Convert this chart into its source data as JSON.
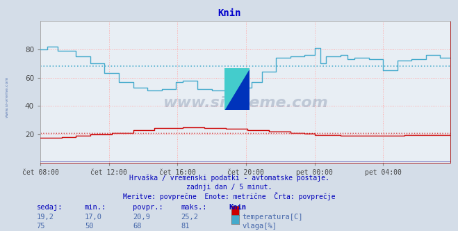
{
  "title": "Knin",
  "title_color": "#0000cc",
  "bg_color": "#d4dde8",
  "plot_bg_color": "#e8eef4",
  "grid_color": "#ffaaaa",
  "x_tick_labels": [
    "čet 08:00",
    "čet 12:00",
    "čet 16:00",
    "čet 20:00",
    "pet 00:00",
    "pet 04:00"
  ],
  "x_tick_positions": [
    0,
    48,
    96,
    144,
    192,
    240
  ],
  "total_points": 288,
  "ylim": [
    0,
    100
  ],
  "y_ticks": [
    20,
    40,
    60,
    80
  ],
  "temp_avg": 20.9,
  "temp_min": 17.0,
  "temp_max": 25.2,
  "temp_now": 19.2,
  "hum_avg": 68,
  "hum_min": 50,
  "hum_max": 81,
  "hum_now": 75,
  "temp_color": "#cc0000",
  "hum_color": "#44aacc",
  "watermark_text": "www.si-vreme.com",
  "footer_line1": "Hrvaška / vremenski podatki - avtomatske postaje.",
  "footer_line2": "zadnji dan / 5 minut.",
  "footer_line3": "Meritve: povprečne  Enote: metrične  Črta: povprečje",
  "label_sedaj": "sedaj:",
  "label_min": "min.:",
  "label_povpr": "povpr.:",
  "label_maks": "maks.:",
  "label_station": "Knin",
  "label_temp": "temperatura[C]",
  "label_hum": "vlaga[%]",
  "footer_color": "#0000bb",
  "sidebar_text": "www.si-vreme.com",
  "sidebar_color": "#4466aa"
}
